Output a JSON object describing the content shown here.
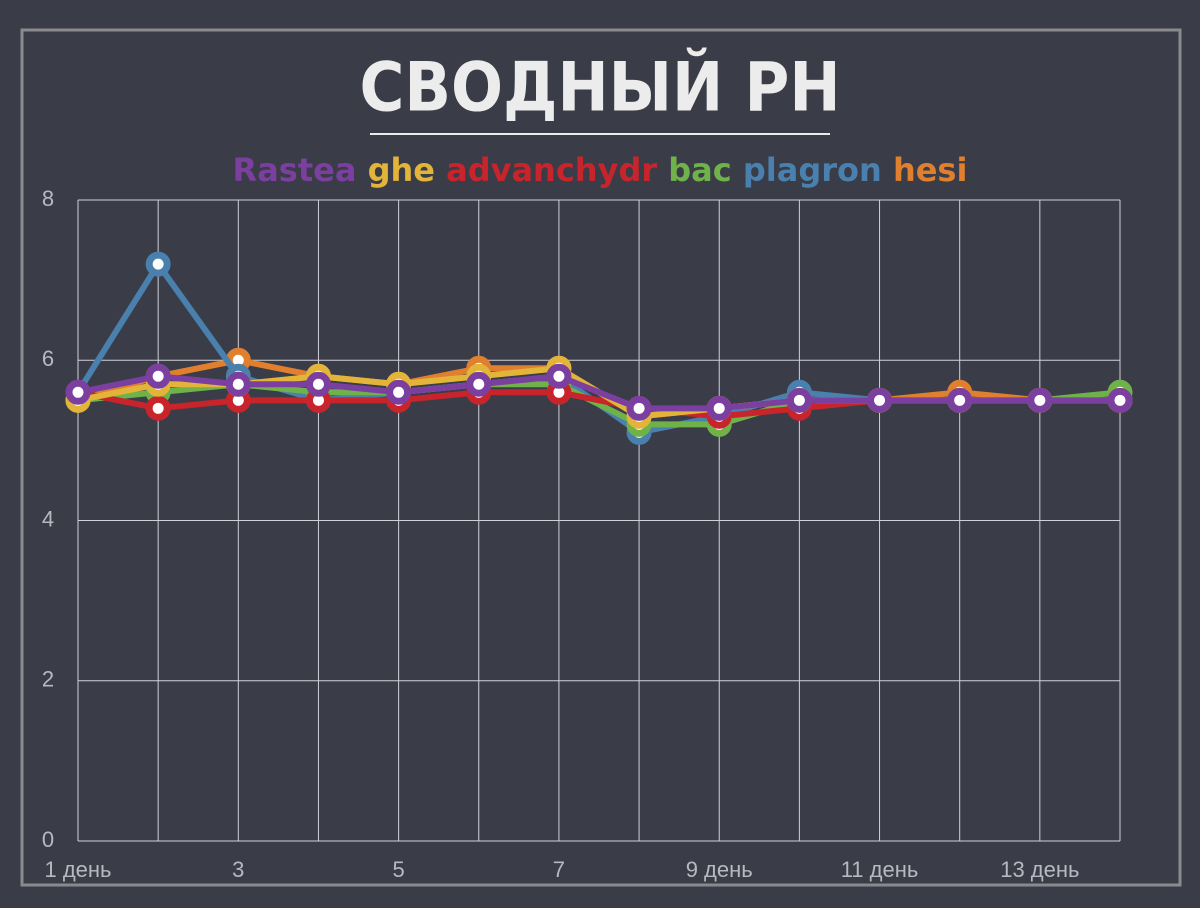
{
  "chart_data": {
    "type": "line",
    "title": "СВОДНЫЙ PH",
    "categories": [
      "1 день",
      null,
      "3",
      null,
      "5",
      null,
      "7",
      null,
      "9 день",
      null,
      "11 день",
      null,
      "13 день",
      null
    ],
    "series": [
      {
        "name": "Rastea",
        "color": "#7b3fa0",
        "values": [
          5.6,
          5.8,
          5.7,
          5.7,
          5.6,
          5.7,
          5.8,
          5.4,
          5.4,
          5.5,
          5.5,
          5.5,
          5.5,
          5.5
        ]
      },
      {
        "name": "ghe",
        "color": "#e3b43a",
        "values": [
          5.5,
          5.7,
          5.7,
          5.8,
          5.7,
          5.8,
          5.9,
          5.3,
          5.4,
          5.5,
          5.5,
          5.5,
          5.5,
          5.5
        ]
      },
      {
        "name": "advanchydr",
        "color": "#c8242b",
        "values": [
          5.6,
          5.4,
          5.5,
          5.5,
          5.5,
          5.6,
          5.6,
          5.4,
          5.3,
          5.4,
          5.5,
          5.5,
          5.5,
          5.5
        ]
      },
      {
        "name": "bac",
        "color": "#6fb24a",
        "values": [
          5.5,
          5.6,
          5.7,
          5.6,
          5.6,
          5.7,
          5.7,
          5.2,
          5.2,
          5.5,
          5.5,
          5.5,
          5.5,
          5.6
        ]
      },
      {
        "name": "plagron",
        "color": "#4a80ad",
        "values": [
          5.6,
          7.2,
          5.8,
          5.5,
          5.6,
          5.7,
          5.8,
          5.1,
          5.3,
          5.6,
          5.5,
          5.5,
          5.5,
          5.5
        ]
      },
      {
        "name": "hesi",
        "color": "#e0802e",
        "values": [
          5.5,
          5.8,
          6.0,
          5.8,
          5.7,
          5.9,
          5.9,
          5.3,
          5.4,
          5.5,
          5.5,
          5.6,
          5.5,
          5.5
        ]
      }
    ],
    "ylim": [
      0,
      8
    ],
    "yticks": [
      0,
      2,
      4,
      6,
      8
    ],
    "grid": true
  }
}
